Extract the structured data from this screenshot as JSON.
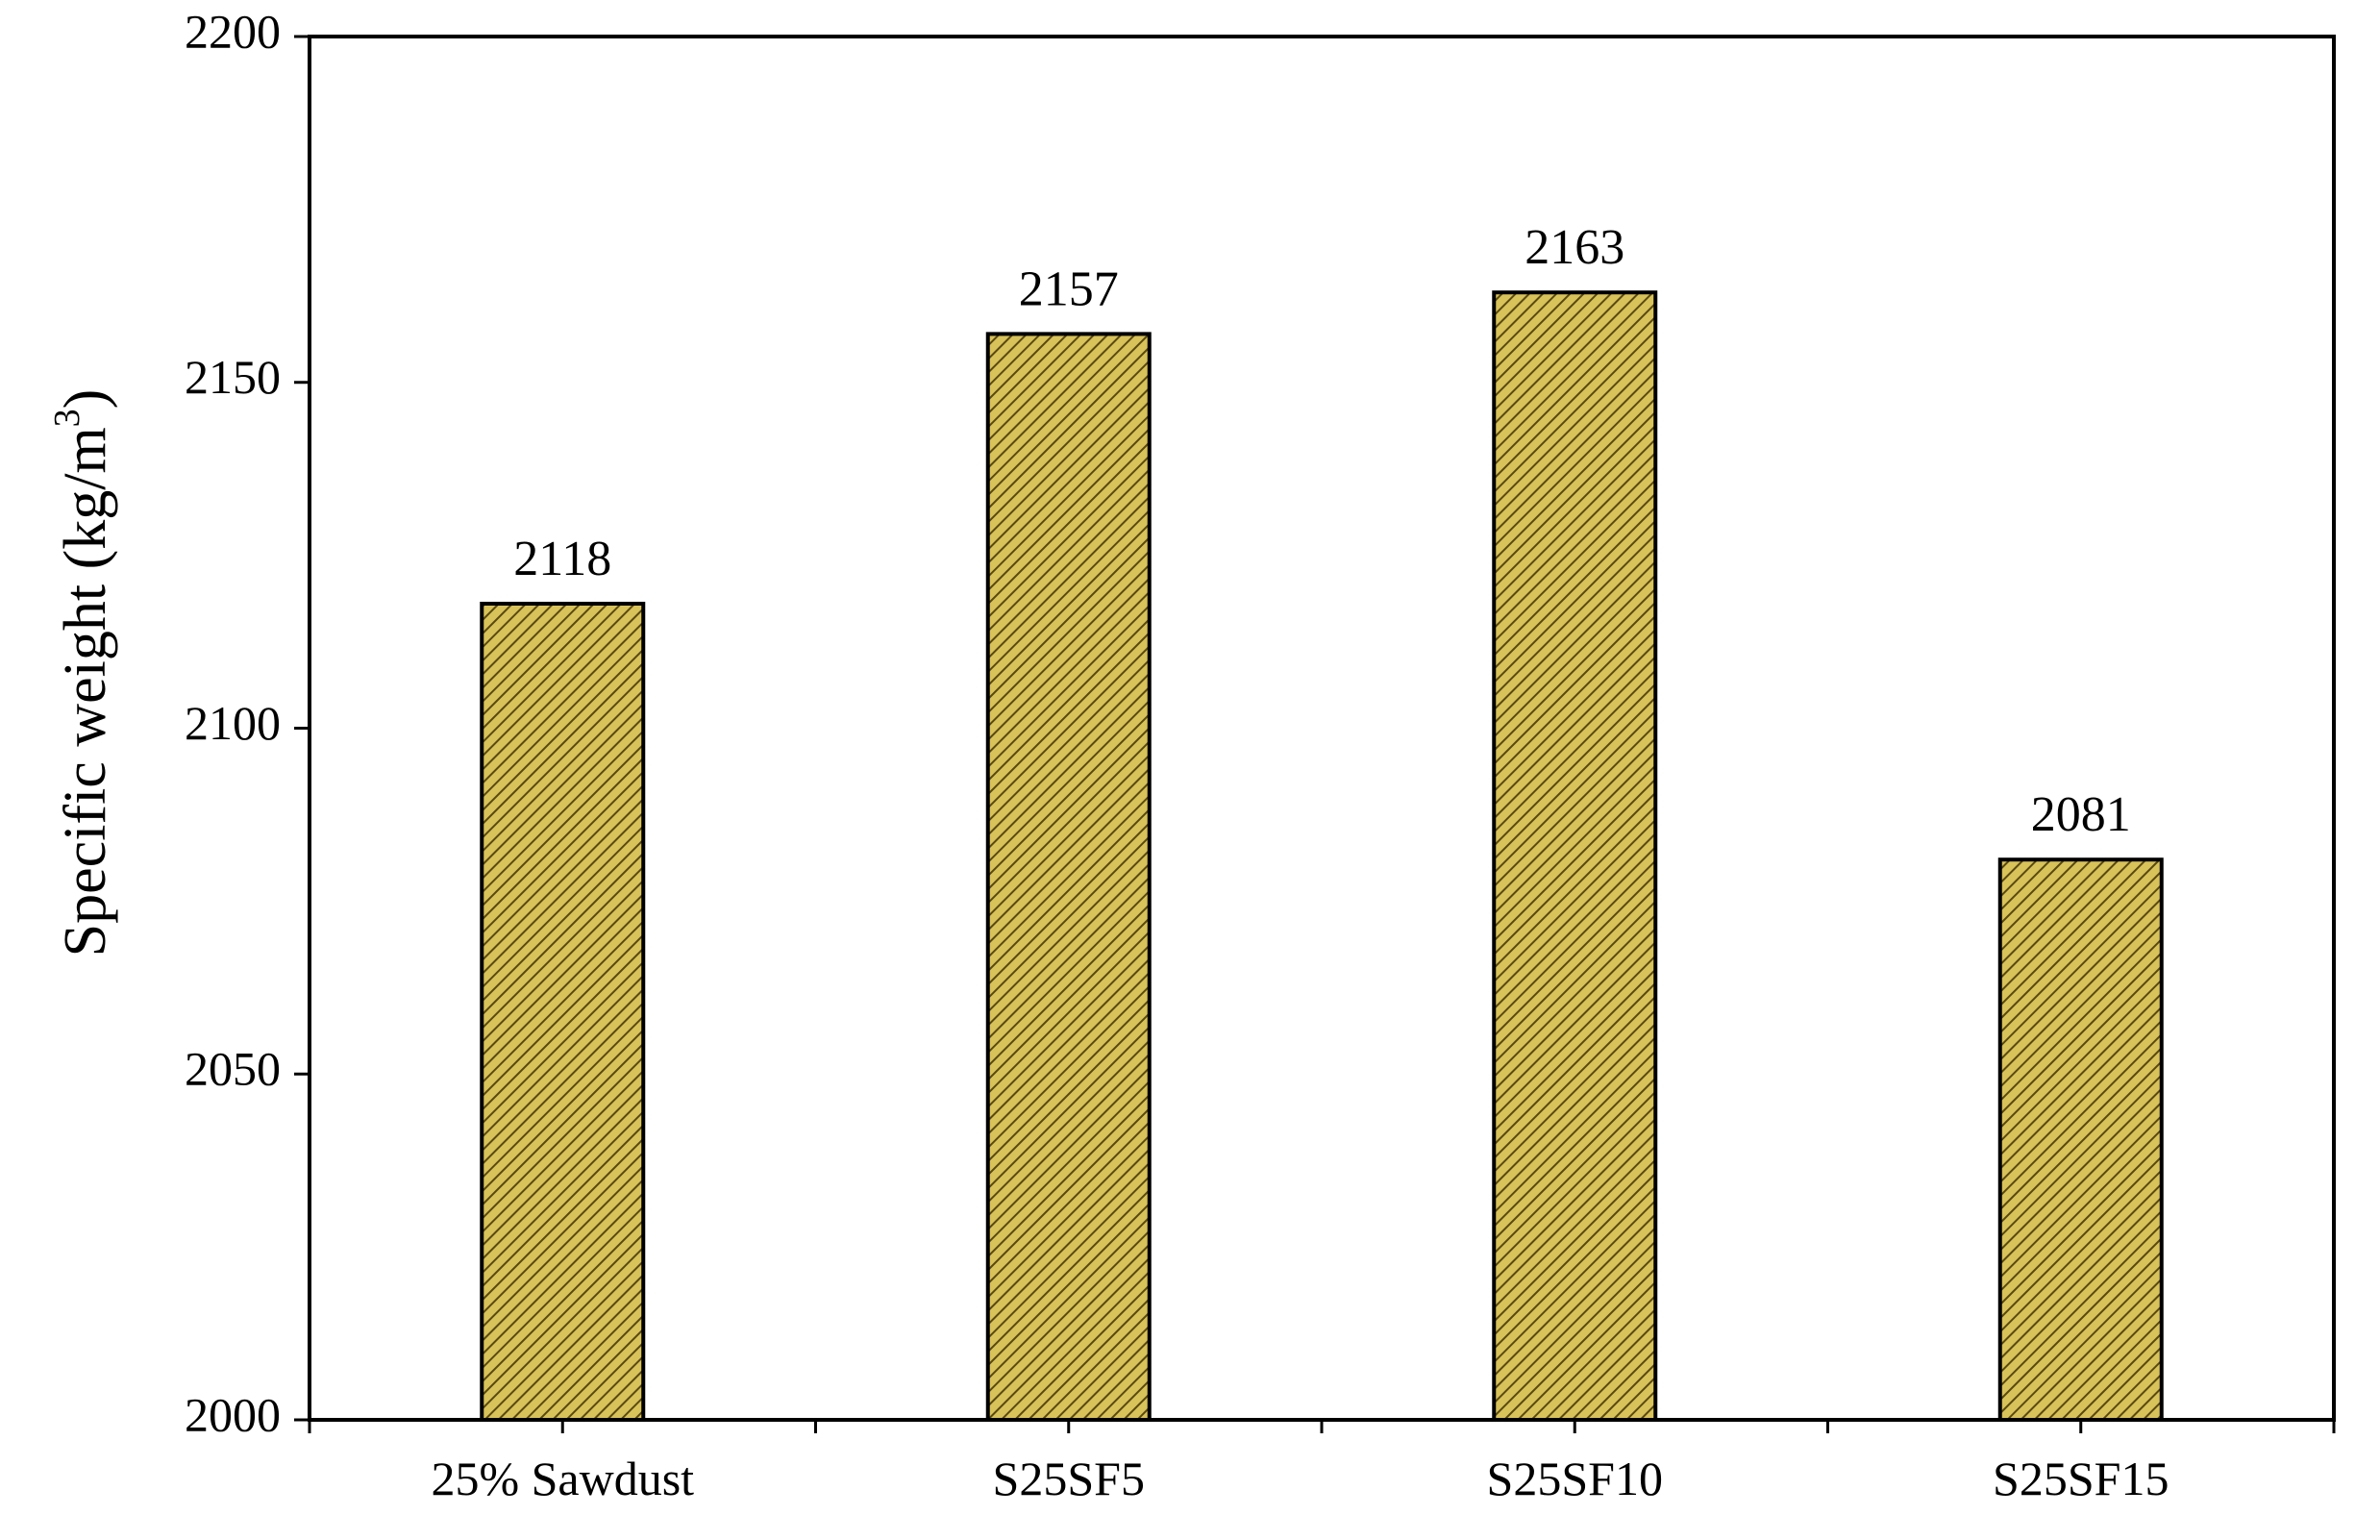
{
  "chart_data": {
    "type": "bar",
    "title": "",
    "xlabel": "",
    "ylabel": "Specific weight (kg/m",
    "ylabel_superscript": "3",
    "ylabel_suffix": ")",
    "categories": [
      "25% Sawdust",
      "S25SF5",
      "S25SF10",
      "S25SF15"
    ],
    "values": [
      2118,
      2157,
      2163,
      2081
    ],
    "data_labels": [
      "2118",
      "2157",
      "2163",
      "2081"
    ],
    "ylim": [
      2000,
      2200
    ],
    "yticks": [
      2000,
      2050,
      2100,
      2150,
      2200
    ],
    "ytick_labels": [
      "2000",
      "2050",
      "2100",
      "2150",
      "2200"
    ],
    "grid": false,
    "legend": "none",
    "bar_fill_color": "#d8c25a",
    "bar_hatch_color": "#5a4a10",
    "bar_edge_color": "#000000"
  }
}
